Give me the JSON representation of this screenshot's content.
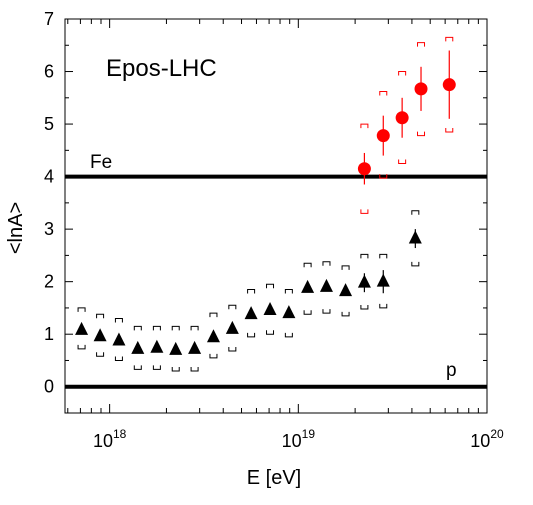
{
  "chart_data": {
    "type": "scatter",
    "title": "Epos-LHC",
    "xlabel": "E [eV]",
    "ylabel": "<lnA>",
    "x_scale": "log",
    "xlim": [
      5.8e+17,
      1e+20
    ],
    "ylim": [
      -0.5,
      7.0
    ],
    "x_ticks": [
      {
        "value": 1e+18,
        "base": "10",
        "exp": "18"
      },
      {
        "value": 1e+19,
        "base": "10",
        "exp": "19"
      },
      {
        "value": 1e+20,
        "base": "10",
        "exp": "20"
      }
    ],
    "y_ticks": [
      0,
      1,
      2,
      3,
      4,
      5,
      6,
      7
    ],
    "grid": false,
    "reference_lines": [
      {
        "label": "Fe",
        "y": 4.0
      },
      {
        "label": "p",
        "y": 0.0
      }
    ],
    "series": [
      {
        "marker": "triangle",
        "color": "#000000",
        "points": [
          {
            "x": 7.1e+17,
            "y": 1.08,
            "sys_lo": 0.72,
            "sys_hi": 1.5
          },
          {
            "x": 8.9e+17,
            "y": 0.96,
            "sys_lo": 0.58,
            "sys_hi": 1.38
          },
          {
            "x": 1.12e+18,
            "y": 0.88,
            "sys_lo": 0.5,
            "sys_hi": 1.3
          },
          {
            "x": 1.41e+18,
            "y": 0.72,
            "sys_lo": 0.33,
            "sys_hi": 1.15
          },
          {
            "x": 1.78e+18,
            "y": 0.74,
            "sys_lo": 0.33,
            "sys_hi": 1.15
          },
          {
            "x": 2.24e+18,
            "y": 0.7,
            "sys_lo": 0.3,
            "sys_hi": 1.15
          },
          {
            "x": 2.82e+18,
            "y": 0.72,
            "sys_lo": 0.3,
            "sys_hi": 1.15
          },
          {
            "x": 3.55e+18,
            "y": 0.94,
            "sys_lo": 0.55,
            "sys_hi": 1.4
          },
          {
            "x": 4.47e+18,
            "y": 1.1,
            "sys_lo": 0.68,
            "sys_hi": 1.55
          },
          {
            "x": 5.62e+18,
            "y": 1.38,
            "sys_lo": 0.95,
            "sys_hi": 1.85
          },
          {
            "x": 7.08e+18,
            "y": 1.46,
            "sys_lo": 1.0,
            "sys_hi": 1.95
          },
          {
            "x": 8.91e+18,
            "y": 1.4,
            "sys_lo": 0.95,
            "sys_hi": 1.85
          },
          {
            "x": 1.12e+19,
            "y": 1.88,
            "sys_lo": 1.38,
            "sys_hi": 2.35
          },
          {
            "x": 1.41e+19,
            "y": 1.9,
            "sys_lo": 1.4,
            "sys_hi": 2.38
          },
          {
            "x": 1.78e+19,
            "y": 1.82,
            "sys_lo": 1.35,
            "sys_hi": 2.3
          },
          {
            "x": 2.24e+19,
            "y": 1.98,
            "sys_lo": 1.48,
            "sys_hi": 2.52,
            "stat": 0.18
          },
          {
            "x": 2.82e+19,
            "y": 2.0,
            "sys_lo": 1.5,
            "sys_hi": 2.52,
            "stat": 0.22
          },
          {
            "x": 4.17e+19,
            "y": 2.82,
            "sys_lo": 2.3,
            "sys_hi": 3.35,
            "stat": 0.18
          }
        ]
      },
      {
        "marker": "circle",
        "color": "#ff0000",
        "points": [
          {
            "x": 2.24e+19,
            "y": 4.15,
            "err": 0.3,
            "sys_lo": 3.3,
            "sys_hi": 5.0
          },
          {
            "x": 2.82e+19,
            "y": 4.78,
            "err": 0.38,
            "sys_lo": 3.97,
            "sys_hi": 5.62
          },
          {
            "x": 3.55e+19,
            "y": 5.12,
            "err": 0.38,
            "sys_lo": 4.25,
            "sys_hi": 6.0
          },
          {
            "x": 4.47e+19,
            "y": 5.67,
            "err": 0.42,
            "sys_lo": 4.78,
            "sys_hi": 6.55
          },
          {
            "x": 6.31e+19,
            "y": 5.75,
            "err": 0.65,
            "sys_lo": 4.85,
            "sys_hi": 6.65
          }
        ]
      }
    ]
  }
}
